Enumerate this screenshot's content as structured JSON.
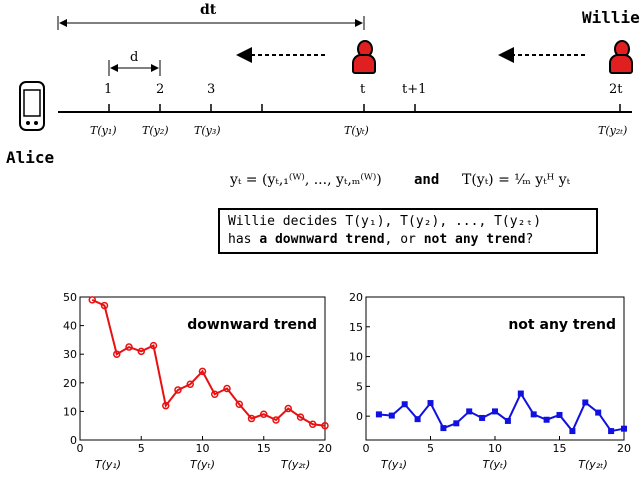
{
  "top": {
    "dt_label": "dt",
    "d_label": "d",
    "willie_label": "Willie",
    "alice_label": "Alice",
    "ticks": [
      "1",
      "2",
      "3",
      "t",
      "t+1",
      "2t"
    ],
    "below": [
      "T(y₁)",
      "T(y₂)",
      "T(y₃)",
      "T(yₜ)",
      "T(y₂ₜ)"
    ]
  },
  "formula": {
    "lhs": "yₜ = (yₜ,₁⁽ᵂ⁾, ..., yₜ,ₘ⁽ᵂ⁾)",
    "and": "and",
    "rhs": "T(yₜ) = ¹⁄ₘ yₜᴴ yₜ"
  },
  "question": {
    "line1": "Willie decides  T(y₁), T(y₂), ..., T(y₂ₜ)",
    "line2_a": "has ",
    "line2_b": "a downward trend",
    "line2_c": ", or ",
    "line2_d": "not any trend",
    "line2_e": "?"
  },
  "chart_data": [
    {
      "type": "line",
      "title": "downward trend",
      "x": [
        1,
        2,
        3,
        4,
        5,
        6,
        7,
        8,
        9,
        10,
        11,
        12,
        13,
        14,
        15,
        16,
        17,
        18,
        19,
        20
      ],
      "series": [
        {
          "values": [
            49,
            47,
            30,
            32.5,
            31,
            33,
            12,
            17.5,
            19.5,
            24,
            16,
            18,
            12.5,
            7.5,
            9,
            7,
            11,
            8,
            5.5,
            5
          ],
          "color": "#e81010"
        }
      ],
      "xlim": [
        0,
        20
      ],
      "ylim": [
        0,
        50
      ],
      "xticks": [
        0,
        5,
        10,
        15,
        20
      ],
      "yticks": [
        0,
        10,
        20,
        30,
        40,
        50
      ],
      "xtick_labels": [
        "T(y₁)",
        "T(yₜ)",
        "T(y₂ₜ)"
      ]
    },
    {
      "type": "line",
      "title": "not any trend",
      "x": [
        1,
        2,
        3,
        4,
        5,
        6,
        7,
        8,
        9,
        10,
        11,
        12,
        13,
        14,
        15,
        16,
        17,
        18,
        19,
        20
      ],
      "series": [
        {
          "values": [
            0.3,
            0.1,
            2,
            -0.5,
            2.2,
            -2,
            -1.2,
            0.8,
            -0.3,
            0.8,
            -0.8,
            3.8,
            0.3,
            -0.6,
            0.2,
            -2.5,
            2.3,
            0.6,
            -2.5,
            -2.1
          ],
          "color": "#1010e0"
        }
      ],
      "xlim": [
        0,
        20
      ],
      "ylim": [
        -4,
        20
      ],
      "xticks": [
        0,
        5,
        10,
        15,
        20
      ],
      "yticks": [
        0,
        5,
        10,
        15,
        20
      ],
      "xtick_labels": [
        "T(y₁)",
        "T(yₜ)",
        "T(y₂ₜ)"
      ]
    }
  ]
}
